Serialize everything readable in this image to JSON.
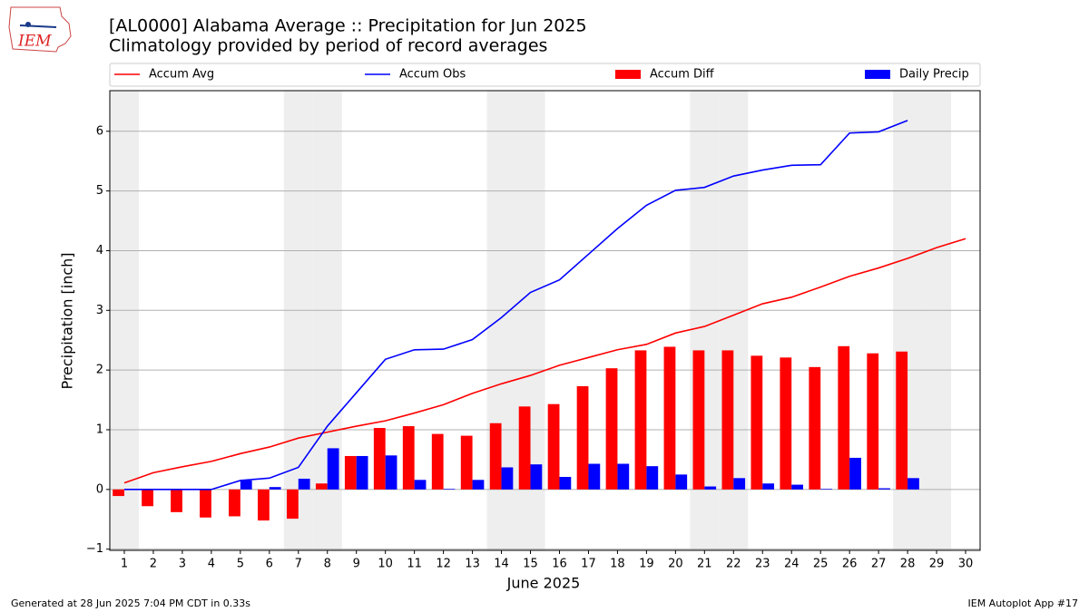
{
  "chart_data": {
    "type": "combo",
    "title": "[AL0000] Alabama Average :: Precipitation for Jun 2025",
    "subtitle": "Climatology provided by period of record averages",
    "x_label": "June 2025",
    "y_label": "Precipitation [inch]",
    "x": [
      1,
      2,
      3,
      4,
      5,
      6,
      7,
      8,
      9,
      10,
      11,
      12,
      13,
      14,
      15,
      16,
      17,
      18,
      19,
      20,
      21,
      22,
      23,
      24,
      25,
      26,
      27,
      28,
      29,
      30
    ],
    "xlim": [
      0.5,
      30.5
    ],
    "xticks": [
      1,
      2,
      3,
      4,
      5,
      6,
      7,
      8,
      9,
      10,
      11,
      12,
      13,
      14,
      15,
      16,
      17,
      18,
      19,
      20,
      21,
      22,
      23,
      24,
      25,
      26,
      27,
      28,
      29,
      30
    ],
    "ylim": [
      -1.02,
      6.68
    ],
    "yticks": [
      {
        "value": -1,
        "label": "−1"
      },
      0,
      1,
      2,
      3,
      4,
      5,
      6
    ],
    "grid": true,
    "shaded_days": [
      1,
      7,
      8,
      14,
      15,
      21,
      22,
      28,
      29
    ],
    "shade_color": "#eeeeee",
    "series": [
      {
        "name": "Accum Avg",
        "kind": "line",
        "color": "#ff0000",
        "values": [
          0.11,
          0.28,
          0.38,
          0.47,
          0.6,
          0.71,
          0.86,
          0.96,
          1.06,
          1.15,
          1.28,
          1.42,
          1.61,
          1.77,
          1.91,
          2.08,
          2.21,
          2.34,
          2.43,
          2.62,
          2.73,
          2.92,
          3.11,
          3.22,
          3.39,
          3.57,
          3.71,
          3.87,
          4.05,
          4.2
        ]
      },
      {
        "name": "Accum Obs",
        "kind": "line",
        "color": "#0000ff",
        "values": [
          0,
          0,
          0,
          0,
          0.15,
          0.19,
          0.37,
          1.06,
          1.62,
          2.18,
          2.34,
          2.35,
          2.51,
          2.88,
          3.3,
          3.51,
          3.94,
          4.37,
          4.76,
          5.01,
          5.06,
          5.25,
          5.35,
          5.43,
          5.44,
          5.97,
          5.99,
          6.18,
          null,
          null
        ]
      },
      {
        "name": "Accum Diff",
        "kind": "bar",
        "side": "left",
        "color": "#ff0000",
        "values": [
          -0.11,
          -0.28,
          -0.38,
          -0.47,
          -0.45,
          -0.52,
          -0.49,
          0.1,
          0.56,
          1.03,
          1.06,
          0.93,
          0.9,
          1.11,
          1.39,
          1.43,
          1.73,
          2.03,
          2.33,
          2.39,
          2.33,
          2.33,
          2.24,
          2.21,
          2.05,
          2.4,
          2.28,
          2.31,
          null,
          null
        ]
      },
      {
        "name": "Daily Precip",
        "kind": "bar",
        "side": "right",
        "color": "#0000ff",
        "values": [
          0,
          0,
          0,
          0,
          0.15,
          0.04,
          0.18,
          0.69,
          0.56,
          0.57,
          0.16,
          0.01,
          0.16,
          0.37,
          0.42,
          0.21,
          0.43,
          0.43,
          0.39,
          0.25,
          0.05,
          0.19,
          0.1,
          0.08,
          0.01,
          0.53,
          0.02,
          0.19,
          null,
          null
        ]
      }
    ]
  },
  "footer": {
    "left": "Generated at 28 Jun 2025 7:04 PM CDT in 0.33s",
    "right": "IEM Autoplot App #17"
  },
  "logo": {
    "text": "IEM"
  }
}
